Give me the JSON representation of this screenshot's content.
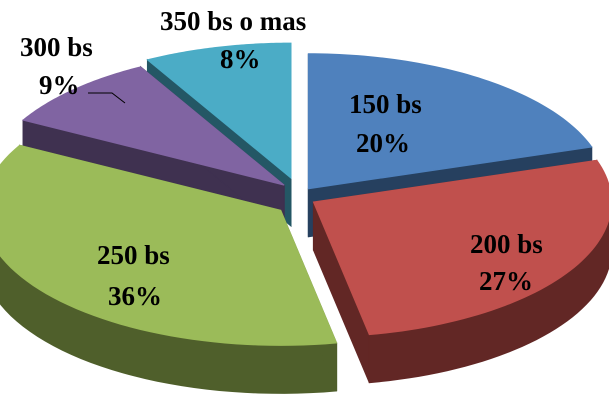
{
  "chart_data": {
    "type": "pie",
    "style": "exploded-3d",
    "title": "",
    "slices": [
      {
        "name": "150 bs",
        "pct_label": "20%",
        "value": 20,
        "color": "#4f81bd",
        "side": "#26405f"
      },
      {
        "name": "200 bs",
        "pct_label": "27%",
        "value": 27,
        "color": "#c0504d",
        "side": "#622725"
      },
      {
        "name": "250 bs",
        "pct_label": "36%",
        "value": 36,
        "color": "#9bbb59",
        "side": "#4f5f2b"
      },
      {
        "name": "300 bs",
        "pct_label": "9%",
        "value": 9,
        "color": "#8064a2",
        "side": "#3f3150"
      },
      {
        "name": "350 bs o mas",
        "pct_label": "8%",
        "value": 8,
        "color": "#4bacc6",
        "side": "#245765"
      }
    ],
    "legend": "none"
  }
}
